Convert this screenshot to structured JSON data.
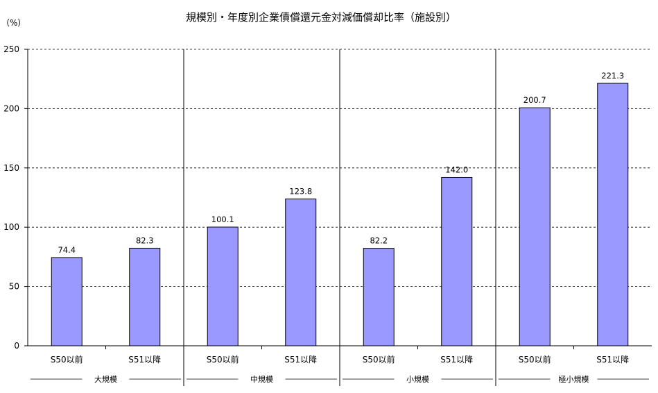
{
  "chart_data": {
    "type": "bar",
    "title": "規模別・年度別企業債償還元金対減価償却比率（施設別）",
    "ylabel": "（%）",
    "xlabel": "",
    "ylim": [
      0,
      250
    ],
    "yticks": [
      0,
      50,
      100,
      150,
      200,
      250
    ],
    "grid": true,
    "grid_style": "dashed",
    "legend": "none",
    "bar_color": "#9999ff",
    "groups": [
      {
        "name": "大規模",
        "categories": [
          "S50以前",
          "S51以降"
        ],
        "values": [
          74.4,
          82.3
        ],
        "labels": [
          "74.4",
          "82.3"
        ]
      },
      {
        "name": "中規模",
        "categories": [
          "S50以前",
          "S51以降"
        ],
        "values": [
          100.1,
          123.8
        ],
        "labels": [
          "100.1",
          "123.8"
        ]
      },
      {
        "name": "小規模",
        "categories": [
          "S50以前",
          "S51以降"
        ],
        "values": [
          82.2,
          142.0
        ],
        "labels": [
          "82.2",
          "142.0"
        ]
      },
      {
        "name": "極小規模",
        "categories": [
          "S50以前",
          "S51以降"
        ],
        "values": [
          200.7,
          221.3
        ],
        "labels": [
          "200.7",
          "221.3"
        ]
      }
    ]
  }
}
